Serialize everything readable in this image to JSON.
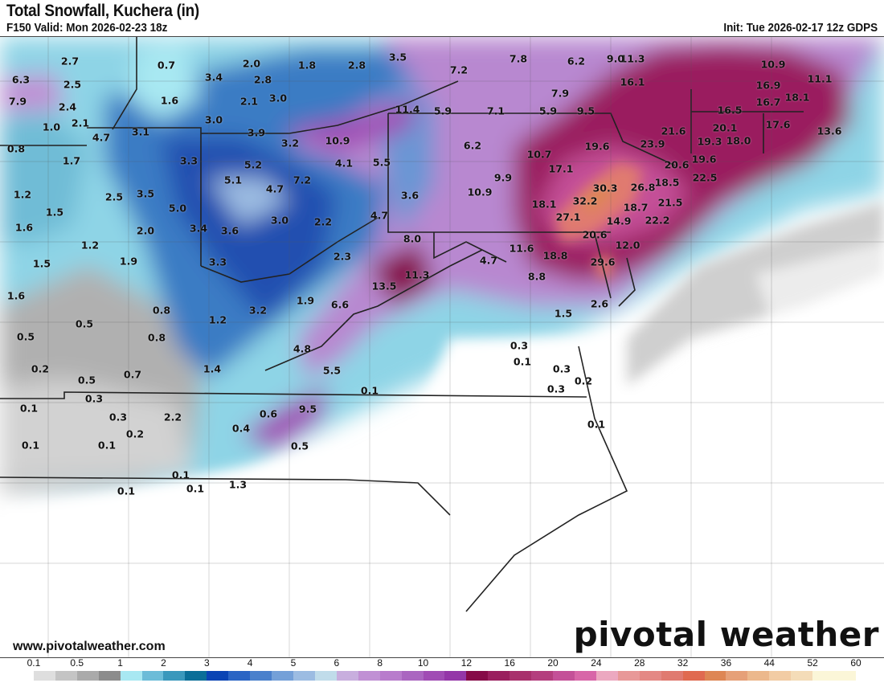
{
  "header": {
    "title": "Total Snowfall, Kuchera (in)",
    "valid": "F150 Valid: Mon 2026-02-23 18z",
    "init": "Init: Tue 2026-02-17 12z GDPS"
  },
  "footer": {
    "website": "www.pivotalweather.com",
    "brand": "pivotal weather"
  },
  "legend": {
    "labels": [
      "0.1",
      "0.5",
      "1",
      "2",
      "3",
      "4",
      "5",
      "6",
      "8",
      "10",
      "12",
      "16",
      "20",
      "24",
      "28",
      "32",
      "36",
      "44",
      "52",
      "60"
    ],
    "colors": [
      "#ffffff",
      "#dedede",
      "#c4c4c4",
      "#aaaaaa",
      "#8c8c8c",
      "#a8e8f2",
      "#6cbcd8",
      "#3a98bc",
      "#0a6e98",
      "#0a44b4",
      "#2a64c4",
      "#4a80cc",
      "#74a0d8",
      "#9cbce2",
      "#c0dcea",
      "#c8aede",
      "#c090d4",
      "#b87ccc",
      "#aa66c0",
      "#a04cb4",
      "#9436a8",
      "#860a48",
      "#9a1e5e",
      "#a8306c",
      "#b43e7e",
      "#c45098",
      "#d866a8",
      "#eca8c0",
      "#e89898",
      "#e48884",
      "#e07a70",
      "#e06a50",
      "#de8654",
      "#e6a078",
      "#ecb88c",
      "#f2cca4",
      "#f4dcb8",
      "#fbf6d8",
      "#fbf6d8"
    ]
  },
  "map": {
    "point_values": [
      "2.7",
      "6.3",
      "2.5",
      "7.9",
      "2.4",
      "1.0",
      "2.1",
      "4.7",
      "0.8",
      "1.7",
      "1.2",
      "1.5",
      "1.6",
      "1.2",
      "1.5",
      "1.6",
      "0.7",
      "1.6",
      "3.4",
      "2.0",
      "2.8",
      "2.1",
      "3.0",
      "3.1",
      "3.3",
      "3.5",
      "5.0",
      "2.5",
      "2.0",
      "3.4",
      "3.6",
      "1.9",
      "3.3",
      "1.8",
      "2.8",
      "3.5",
      "3.0",
      "3.9",
      "3.2",
      "10.9",
      "5.2",
      "5.1",
      "4.7",
      "7.2",
      "4.1",
      "5.5",
      "3.6",
      "4.7",
      "3.0",
      "2.2",
      "2.3",
      "8.0",
      "11.4",
      "11.3",
      "13.5",
      "1.9",
      "6.6",
      "3.2",
      "1.2",
      "0.8",
      "0.8",
      "0.5",
      "0.5",
      "0.2",
      "0.5",
      "0.7",
      "0.3",
      "0.1",
      "0.3",
      "0.2",
      "0.1",
      "0.1",
      "0.1",
      "0.1",
      "0.1",
      "1.3",
      "1.4",
      "2.2",
      "4.8",
      "5.5",
      "0.1",
      "9.5",
      "0.6",
      "0.4",
      "0.5",
      "0.3",
      "0.1",
      "0.3",
      "0.2",
      "0.3",
      "0.1",
      "1.5",
      "2.6",
      "8.8",
      "4.7",
      "11.6",
      "18.8",
      "29.6",
      "12.0",
      "20.6",
      "14.9",
      "22.2",
      "27.1",
      "18.1",
      "32.2",
      "18.7",
      "21.5",
      "30.3",
      "26.8",
      "18.5",
      "22.5",
      "17.1",
      "20.6",
      "19.6",
      "10.7",
      "9.9",
      "10.9",
      "6.2",
      "19.6",
      "23.9",
      "21.6",
      "19.3",
      "18.0",
      "20.1",
      "16.5",
      "17.6",
      "13.6",
      "16.7",
      "18.1",
      "16.9",
      "11.1",
      "10.9",
      "16.1",
      "11.3",
      "9.0",
      "7.8",
      "6.2",
      "7.2",
      "7.9",
      "5.9",
      "7.1",
      "5.9",
      "9.5"
    ]
  }
}
